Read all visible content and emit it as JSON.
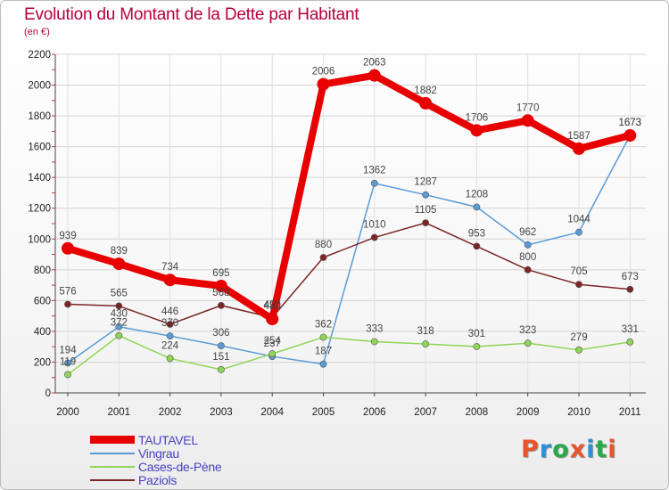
{
  "header": {
    "title": "Evolution du Montant de la Dette par Habitant",
    "subtitle": "(en €)"
  },
  "logo": {
    "text": "Proxiti",
    "colors": [
      "#e8532b",
      "#2d8fd5",
      "#2aa84a",
      "#e8532b",
      "#2d8fd5",
      "#2aa84a",
      "#e8532b"
    ]
  },
  "chart_data": {
    "type": "line",
    "title": "Evolution du Montant de la Dette par Habitant",
    "subtitle": "(en €)",
    "x": [
      "2000",
      "2001",
      "2002",
      "2003",
      "2004",
      "2005",
      "2006",
      "2007",
      "2008",
      "2009",
      "2010",
      "2011"
    ],
    "ylim": [
      0,
      2200
    ],
    "yticks": [
      0,
      200,
      400,
      600,
      800,
      1000,
      1200,
      1400,
      1600,
      1800,
      2000,
      2200
    ],
    "grid": true,
    "legend_position": "bottom-left",
    "series": [
      {
        "name": "TAUTAVEL",
        "color": "#e80000",
        "style": "thick",
        "values": [
          939,
          839,
          734,
          695,
          480,
          2006,
          2063,
          1882,
          1706,
          1770,
          1587,
          1673
        ],
        "labels": [
          "939",
          "839",
          "734",
          "695",
          "480",
          "2006",
          "2063",
          "1882",
          "1706",
          "1770",
          "1587",
          "1673"
        ]
      },
      {
        "name": "Vingrau",
        "color": "#5a9bd5",
        "style": "thin",
        "values": [
          194,
          430,
          370,
          306,
          237,
          187,
          1362,
          1287,
          1208,
          962,
          1044,
          1673
        ],
        "labels": [
          "194",
          "430",
          "370",
          "306",
          "237",
          "187",
          "1362",
          "1287",
          "1208",
          "962",
          "1044",
          "1673"
        ]
      },
      {
        "name": "Cases-de-Pène",
        "color": "#8fd656",
        "style": "thin",
        "values": [
          119,
          372,
          224,
          151,
          254,
          362,
          333,
          318,
          301,
          323,
          279,
          331
        ],
        "labels": [
          "119",
          "372",
          "224",
          "151",
          "254",
          "362",
          "333",
          "318",
          "301",
          "323",
          "279",
          "331"
        ]
      },
      {
        "name": "Paziols",
        "color": "#7b2525",
        "style": "thin",
        "values": [
          576,
          565,
          446,
          568,
          490,
          880,
          1010,
          1105,
          953,
          800,
          705,
          673
        ],
        "labels": [
          "576",
          "565",
          "446",
          "568",
          "490",
          "880",
          "1010",
          "1105",
          "953",
          "800",
          "705",
          "673"
        ]
      }
    ]
  }
}
